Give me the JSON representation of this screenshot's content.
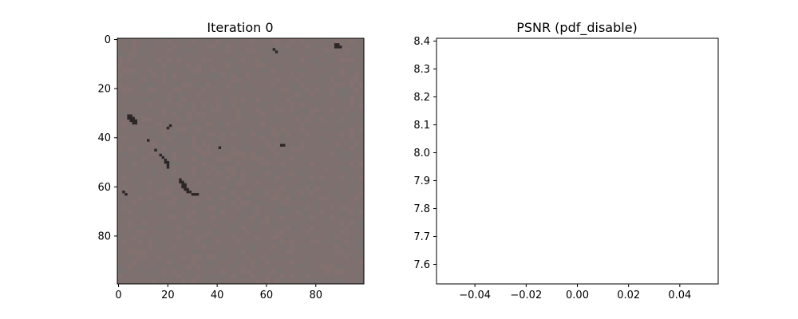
{
  "colors": {
    "image_base": "#7e706f",
    "image_dark_spots": "#2c2626",
    "axes": "#000000",
    "background": "#ffffff"
  },
  "chart_data": [
    {
      "type": "heatmap",
      "title": "Iteration 0",
      "xlabel": "",
      "ylabel": "",
      "image_size": [
        100,
        100
      ],
      "xlim": [
        -0.5,
        99.5
      ],
      "ylim": [
        99.5,
        -0.5
      ],
      "xticks": [
        0,
        20,
        40,
        60,
        80
      ],
      "yticks": [
        0,
        20,
        40,
        60,
        80
      ],
      "description_values": "nearly uniform greyish-mauve texture with a few dark clusters",
      "dark_spots": [
        {
          "x": 4,
          "y": 31
        },
        {
          "x": 5,
          "y": 31
        },
        {
          "x": 4,
          "y": 32
        },
        {
          "x": 5,
          "y": 32
        },
        {
          "x": 6,
          "y": 32
        },
        {
          "x": 5,
          "y": 33
        },
        {
          "x": 6,
          "y": 33
        },
        {
          "x": 7,
          "y": 33
        },
        {
          "x": 6,
          "y": 34
        },
        {
          "x": 7,
          "y": 34
        },
        {
          "x": 21,
          "y": 35
        },
        {
          "x": 20,
          "y": 36
        },
        {
          "x": 12,
          "y": 41
        },
        {
          "x": 41,
          "y": 44
        },
        {
          "x": 15,
          "y": 45
        },
        {
          "x": 17,
          "y": 47
        },
        {
          "x": 18,
          "y": 48
        },
        {
          "x": 19,
          "y": 49
        },
        {
          "x": 19,
          "y": 50
        },
        {
          "x": 20,
          "y": 50
        },
        {
          "x": 20,
          "y": 51
        },
        {
          "x": 20,
          "y": 52
        },
        {
          "x": 25,
          "y": 57
        },
        {
          "x": 25,
          "y": 58
        },
        {
          "x": 26,
          "y": 58
        },
        {
          "x": 26,
          "y": 59
        },
        {
          "x": 27,
          "y": 59
        },
        {
          "x": 27,
          "y": 60
        },
        {
          "x": 26,
          "y": 60
        },
        {
          "x": 27,
          "y": 61
        },
        {
          "x": 28,
          "y": 61
        },
        {
          "x": 28,
          "y": 62
        },
        {
          "x": 29,
          "y": 62
        },
        {
          "x": 30,
          "y": 63
        },
        {
          "x": 31,
          "y": 63
        },
        {
          "x": 32,
          "y": 63
        },
        {
          "x": 2,
          "y": 62
        },
        {
          "x": 3,
          "y": 63
        },
        {
          "x": 63,
          "y": 4
        },
        {
          "x": 64,
          "y": 5
        },
        {
          "x": 88,
          "y": 2
        },
        {
          "x": 89,
          "y": 2
        },
        {
          "x": 88,
          "y": 3
        },
        {
          "x": 89,
          "y": 3
        },
        {
          "x": 90,
          "y": 3
        },
        {
          "x": 66,
          "y": 43
        },
        {
          "x": 67,
          "y": 43
        }
      ]
    },
    {
      "type": "line",
      "title": "PSNR (pdf_disable)",
      "xlabel": "",
      "ylabel": "",
      "xlim": [
        -0.055,
        0.055
      ],
      "ylim": [
        7.53,
        8.41
      ],
      "xticks": [
        -0.04,
        -0.02,
        0.0,
        0.02,
        0.04
      ],
      "xtick_labels": [
        "−0.04",
        "−0.02",
        "0.00",
        "0.02",
        "0.04"
      ],
      "yticks": [
        7.6,
        7.7,
        7.8,
        7.9,
        8.0,
        8.1,
        8.2,
        8.3,
        8.4
      ],
      "ytick_labels": [
        "7.6",
        "7.7",
        "7.8",
        "7.9",
        "8.0",
        "8.1",
        "8.2",
        "8.3",
        "8.4"
      ],
      "x": [],
      "series": [],
      "grid": false
    }
  ]
}
